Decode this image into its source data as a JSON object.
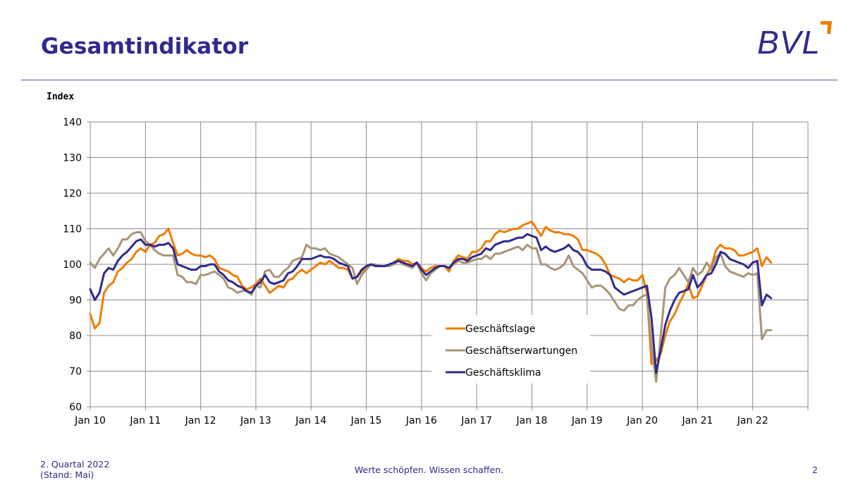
{
  "header": {
    "title": "Gesamtindikator",
    "logo_text": "BVL",
    "colors": {
      "title": "#2f2a8c",
      "logo": "#2f2a8c",
      "logo_accent": "#f07d00"
    }
  },
  "footer": {
    "period_line1": "2. Quartal 2022",
    "period_line2": "(Stand: Mai)",
    "slogan": "Werte schöpfen. Wissen schaffen.",
    "page_number": "2"
  },
  "chart_data": {
    "type": "line",
    "title": "",
    "xlabel": "",
    "ylabel": "Index",
    "ylim": [
      60,
      140
    ],
    "yticks": [
      60,
      70,
      80,
      90,
      100,
      110,
      120,
      130,
      140
    ],
    "grid": true,
    "legend_position": "lower-center",
    "x_start": "2010-01",
    "x_end": "2023-01",
    "x_ticks": [
      "Jan 10",
      "Jan 11",
      "Jan 12",
      "Jan 13",
      "Jan 14",
      "Jan 15",
      "Jan 16",
      "Jan 17",
      "Jan 18",
      "Jan 19",
      "Jan 20",
      "Jan 21",
      "Jan 22"
    ],
    "series": [
      {
        "name": "Geschäftslage",
        "color": "#f07d00",
        "start": "2010-01",
        "values": [
          86,
          82,
          83.5,
          92,
          94,
          95,
          98,
          99,
          100.5,
          101.5,
          103.5,
          104.5,
          103.5,
          105.5,
          106,
          108,
          108.5,
          110,
          106,
          102.5,
          103,
          104,
          103,
          102.5,
          102.5,
          102,
          102.5,
          101.5,
          99,
          98.5,
          98,
          97,
          96.5,
          94,
          93,
          93.5,
          94.5,
          96,
          94,
          92,
          93,
          94,
          93.5,
          95.5,
          96,
          97.5,
          98.5,
          97.5,
          98.5,
          99.5,
          100.5,
          100,
          101,
          100,
          99,
          99,
          98.5,
          96,
          96.5,
          98,
          99,
          100,
          99.5,
          99.5,
          99.5,
          99.5,
          100.5,
          101.5,
          101,
          101,
          100,
          100.5,
          99,
          98,
          99,
          99.5,
          99.5,
          99.5,
          98,
          101,
          102.5,
          102,
          101.5,
          103.5,
          103.5,
          104.5,
          106.5,
          106.5,
          108.5,
          109.5,
          109,
          109.5,
          110,
          110,
          111,
          111.5,
          112,
          110,
          108,
          110.5,
          109.5,
          109,
          109,
          108.5,
          108.5,
          108,
          107,
          104,
          104,
          103.5,
          103,
          102,
          100,
          97,
          96.5,
          96,
          95,
          96,
          95.5,
          95.5,
          97,
          92,
          72,
          73,
          75,
          80,
          84,
          86,
          89,
          91.5,
          94.5,
          90.5,
          91,
          94,
          97,
          99.5,
          104,
          105.5,
          104.5,
          104.5,
          104,
          102.5,
          102.5,
          103,
          103.5,
          104.5,
          99.5,
          102,
          100.5
        ]
      },
      {
        "name": "Geschäftserwartungen",
        "color": "#a89576",
        "start": "2010-01",
        "values": [
          100.5,
          99,
          101.5,
          103,
          104.5,
          102.5,
          104.5,
          107,
          107,
          108.5,
          109,
          109,
          106.5,
          105.5,
          104,
          103,
          102.5,
          102.5,
          102.5,
          97,
          96.5,
          95,
          95,
          94.5,
          97,
          97,
          97.5,
          98,
          97,
          96,
          93.5,
          93,
          92,
          92.5,
          92.5,
          91.5,
          94,
          93.5,
          98,
          98.5,
          96.5,
          96.5,
          98,
          99,
          101,
          101.5,
          102,
          105.5,
          104.5,
          104.5,
          104,
          104.5,
          103,
          102.5,
          102,
          101,
          100,
          99,
          94.5,
          97,
          98.5,
          100,
          100,
          99.5,
          99.5,
          99.5,
          100,
          101,
          100,
          99.5,
          99,
          100.5,
          97.5,
          95.5,
          97.5,
          98.5,
          99.5,
          99.5,
          99,
          100,
          101,
          100.5,
          100.5,
          101,
          101.5,
          101.5,
          102.5,
          101.5,
          103,
          103,
          103.5,
          104,
          104.5,
          105,
          104,
          105.5,
          104.5,
          104.5,
          100,
          100,
          99,
          98.5,
          99,
          100,
          102.5,
          99.5,
          98.5,
          97.5,
          95.5,
          93.5,
          94,
          94,
          93,
          91.5,
          89.5,
          87.5,
          87,
          88.5,
          88.5,
          90,
          91,
          91.5,
          77,
          67,
          80,
          93.5,
          96,
          97,
          99,
          97,
          95,
          99,
          97,
          98,
          100.5,
          98.5,
          102,
          103,
          99.5,
          98,
          97.5,
          97,
          96.5,
          97.5,
          97,
          97.5,
          79,
          81.5,
          81.5
        ]
      },
      {
        "name": "Geschäftsklima",
        "color": "#2f2a8c",
        "start": "2010-01",
        "values": [
          93,
          90,
          92,
          97.5,
          99,
          98.5,
          101,
          102.5,
          103.5,
          105,
          106.5,
          107,
          105.5,
          105.5,
          105,
          105.5,
          105.5,
          106,
          104.5,
          100,
          99.5,
          99,
          98.5,
          98.5,
          99.5,
          99.5,
          100,
          100,
          98,
          97,
          95.5,
          95,
          94,
          93.5,
          92.5,
          92,
          94,
          95,
          97,
          95,
          94.5,
          95,
          95.5,
          97.5,
          98,
          99.5,
          101.5,
          101.5,
          101.5,
          102,
          102.5,
          102,
          102,
          101.5,
          100.5,
          100,
          99.5,
          96,
          96.5,
          98.5,
          99.5,
          100,
          99.5,
          99.5,
          99.5,
          100,
          100.5,
          101,
          100.5,
          100,
          99.5,
          100.5,
          98.5,
          97,
          98,
          99,
          99.5,
          99.5,
          99,
          100.5,
          101.5,
          101.5,
          101,
          102,
          102.5,
          103,
          104.5,
          104,
          105.5,
          106,
          106.5,
          106.5,
          107,
          107.5,
          107.5,
          108.5,
          108,
          107.5,
          104,
          105,
          104,
          103.5,
          104,
          104.5,
          105.5,
          104,
          103.5,
          102,
          99.5,
          98.5,
          98.5,
          98.5,
          98,
          97,
          93.5,
          92.5,
          91.5,
          92,
          92.5,
          93,
          93.5,
          94,
          85,
          69.5,
          76,
          83,
          87,
          90,
          92,
          92.5,
          93,
          97,
          93.5,
          95,
          97,
          97.5,
          100,
          103.5,
          103,
          101.5,
          101,
          100.5,
          100,
          99,
          100.5,
          101,
          88.5,
          91.5,
          90.5
        ]
      }
    ]
  }
}
